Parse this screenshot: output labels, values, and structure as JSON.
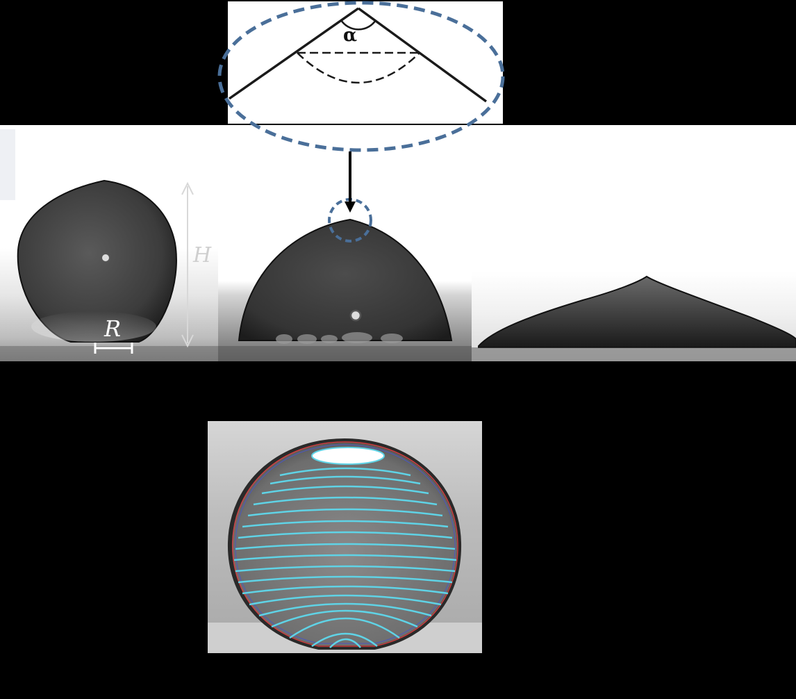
{
  "diagram": {
    "angle_symbol": "α",
    "height_symbol": "H",
    "radius_symbol": "R"
  },
  "colors": {
    "background": "#000000",
    "highlight_dashed": "#4a6f99",
    "streamline": "#5fd3e6",
    "contour_fit": "#d04040",
    "measurement": "#d8d8d8"
  }
}
